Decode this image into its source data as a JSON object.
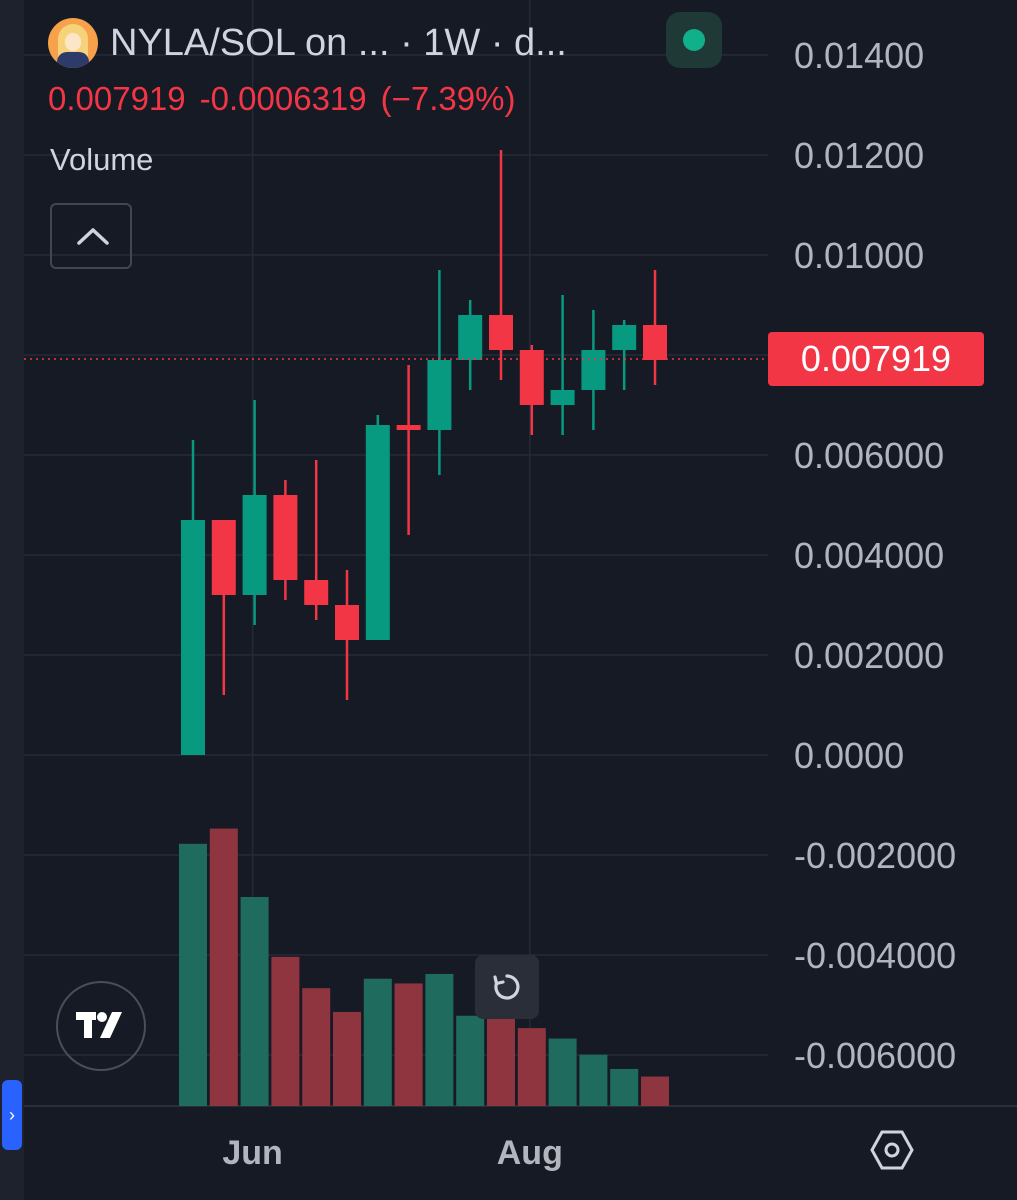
{
  "header": {
    "title": "NYLA/SOL on ... · 1W · d...",
    "last_price": "0.007919",
    "change": "-0.0006319",
    "change_pct": "(−7.39%)",
    "volume_label": "Volume",
    "price_tag": "0.007919"
  },
  "icons": {
    "avatar": "nyla-avatar-icon",
    "live": "live-status-dot-icon",
    "collapse": "chevron-up-icon",
    "reset": "reset-rotate-icon",
    "logo": "tradingview-logo-icon",
    "settings": "settings-hexagon-icon",
    "side": "expand-sidebar-icon"
  },
  "colors": {
    "up": "#089981",
    "down": "#f23645",
    "volume_up": "#1f6b5e",
    "volume_down": "#8e3540",
    "background": "#161a25",
    "grid": "#262a36",
    "axis_text": "#b2b5be",
    "last_price_line": "#f23645"
  },
  "chart_data": {
    "type": "candlestick",
    "interval": "1W",
    "y_ticks": [
      "0.01400",
      "0.01200",
      "0.01000",
      "0.006000",
      "0.004000",
      "0.002000",
      "0.0000",
      "-0.002000",
      "-0.004000",
      "-0.006000"
    ],
    "y_tick_values": [
      0.014,
      0.012,
      0.01,
      0.006,
      0.004,
      0.002,
      0.0,
      -0.002,
      -0.004,
      -0.006
    ],
    "ylim": [
      -0.007,
      0.0154
    ],
    "x_labels": [
      {
        "label": "Jun",
        "index": 2
      },
      {
        "label": "Aug",
        "index": 11
      }
    ],
    "last_price": 0.007919,
    "candles": [
      {
        "open": 0.0,
        "high": 0.0063,
        "low": 0.0,
        "close": 0.0047
      },
      {
        "open": 0.0047,
        "high": 0.0047,
        "low": 0.0012,
        "close": 0.0032
      },
      {
        "open": 0.0032,
        "high": 0.0071,
        "low": 0.0026,
        "close": 0.0052
      },
      {
        "open": 0.0052,
        "high": 0.0055,
        "low": 0.0031,
        "close": 0.0035
      },
      {
        "open": 0.0035,
        "high": 0.0059,
        "low": 0.0027,
        "close": 0.003
      },
      {
        "open": 0.003,
        "high": 0.0037,
        "low": 0.0011,
        "close": 0.0023
      },
      {
        "open": 0.0023,
        "high": 0.0068,
        "low": 0.0023,
        "close": 0.0066
      },
      {
        "open": 0.0066,
        "high": 0.0078,
        "low": 0.0044,
        "close": 0.0065
      },
      {
        "open": 0.0065,
        "high": 0.0097,
        "low": 0.0056,
        "close": 0.0079
      },
      {
        "open": 0.0079,
        "high": 0.0091,
        "low": 0.0073,
        "close": 0.0088
      },
      {
        "open": 0.0088,
        "high": 0.0121,
        "low": 0.0075,
        "close": 0.0081
      },
      {
        "open": 0.0081,
        "high": 0.0082,
        "low": 0.0064,
        "close": 0.007
      },
      {
        "open": 0.007,
        "high": 0.0092,
        "low": 0.0064,
        "close": 0.0073
      },
      {
        "open": 0.0073,
        "high": 0.0089,
        "low": 0.0065,
        "close": 0.0081
      },
      {
        "open": 0.0081,
        "high": 0.0087,
        "low": 0.0073,
        "close": 0.0086
      },
      {
        "open": 0.0086,
        "high": 0.0097,
        "low": 0.0074,
        "close": 0.0079
      }
    ],
    "volume": [
      276,
      292,
      220,
      157,
      124,
      99,
      134,
      129,
      139,
      95,
      107,
      82,
      71,
      54,
      39,
      31
    ],
    "volume_direction": [
      "up",
      "down",
      "up",
      "down",
      "down",
      "down",
      "up",
      "down",
      "up",
      "up",
      "down",
      "down",
      "up",
      "up",
      "up",
      "down"
    ]
  }
}
